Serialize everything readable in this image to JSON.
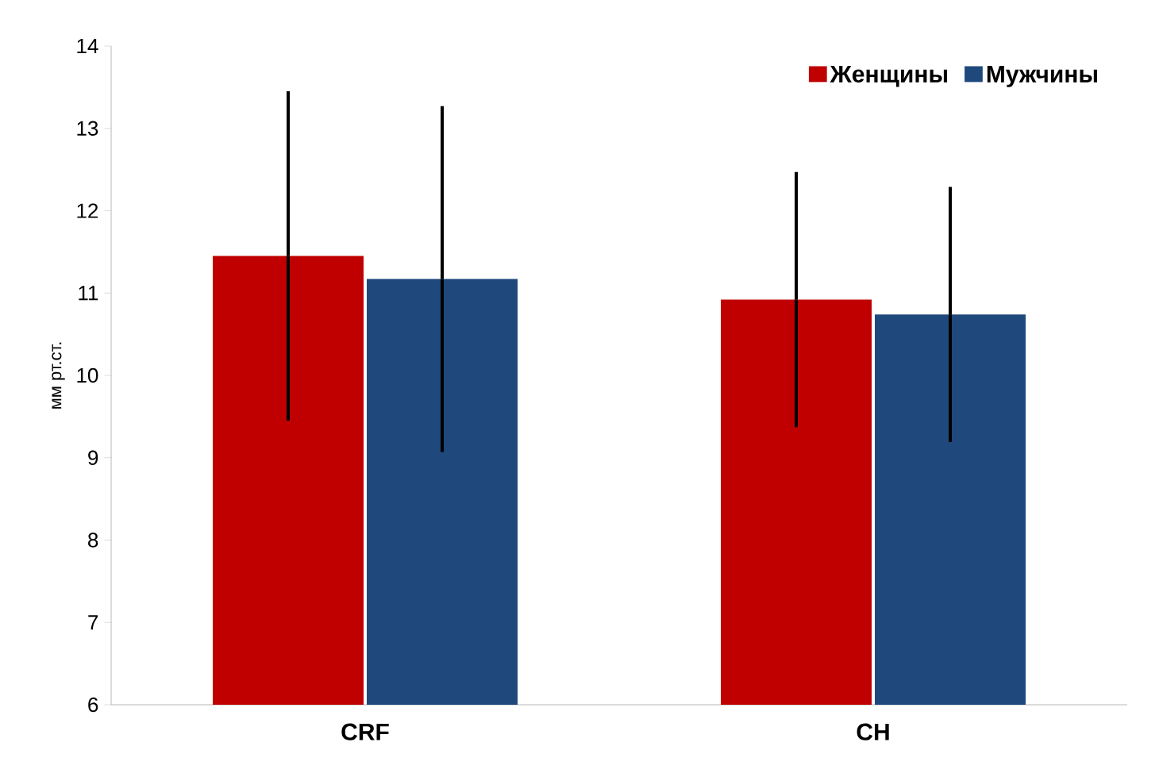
{
  "chart_data": {
    "type": "bar",
    "ylabel": "мм рт.ст.",
    "categories": [
      "CRF",
      "CH"
    ],
    "series": [
      {
        "name": "Женщины",
        "color": "#c00000",
        "values": [
          11.45,
          10.92
        ],
        "errors": [
          2.0,
          1.55
        ]
      },
      {
        "name": "Мужчины",
        "color": "#1f497d",
        "values": [
          11.17,
          10.74
        ],
        "errors": [
          2.1,
          1.55
        ]
      }
    ],
    "ylim": [
      6,
      14
    ],
    "yticks": [
      6,
      7,
      8,
      9,
      10,
      11,
      12,
      13,
      14
    ],
    "legend": "top right",
    "grid": false
  }
}
